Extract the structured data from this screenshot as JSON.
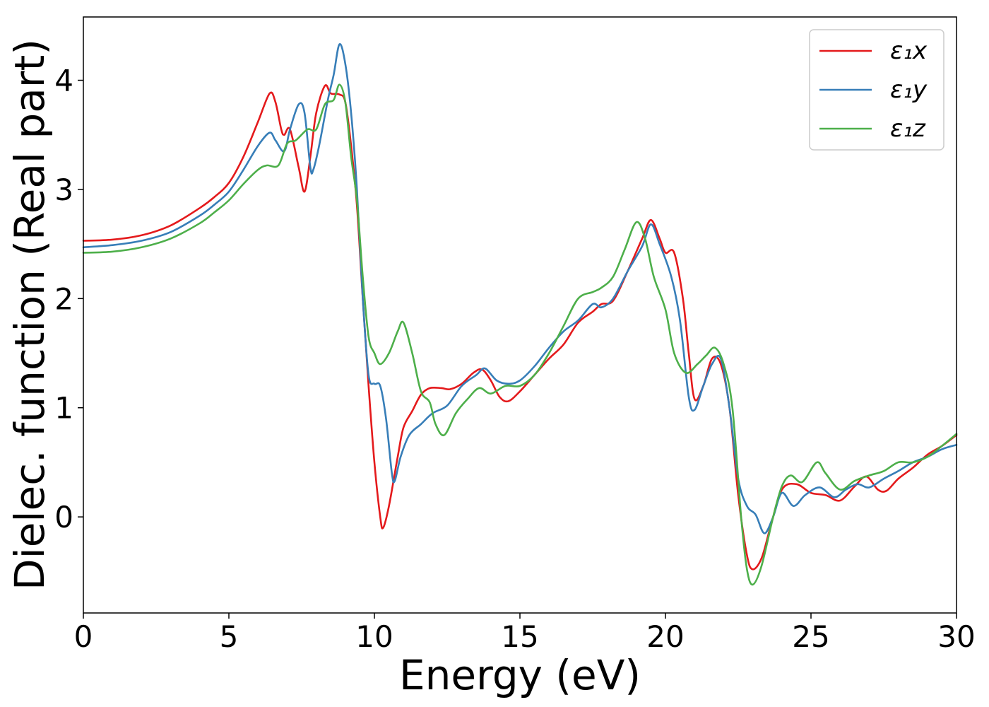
{
  "chart_data": {
    "type": "line",
    "title": "",
    "xlabel": "Energy (eV)",
    "ylabel": "Dielec. function (Real part)",
    "xlim": [
      0,
      30
    ],
    "ylim": [
      -0.88,
      4.58
    ],
    "xticks": [
      0,
      5,
      10,
      15,
      20,
      25,
      30
    ],
    "yticks": [
      0,
      1,
      2,
      3,
      4
    ],
    "grid": false,
    "legend_position": "top-right",
    "series": [
      {
        "name": "ε₁x",
        "color": "#e41a1c",
        "points": [
          [
            0,
            2.53
          ],
          [
            1,
            2.54
          ],
          [
            2,
            2.58
          ],
          [
            3,
            2.67
          ],
          [
            4,
            2.83
          ],
          [
            4.5,
            2.93
          ],
          [
            5,
            3.06
          ],
          [
            5.5,
            3.3
          ],
          [
            6,
            3.62
          ],
          [
            6.4,
            3.88
          ],
          [
            6.6,
            3.8
          ],
          [
            6.8,
            3.55
          ],
          [
            6.9,
            3.5
          ],
          [
            7.1,
            3.55
          ],
          [
            7.4,
            3.2
          ],
          [
            7.6,
            2.98
          ],
          [
            7.8,
            3.3
          ],
          [
            8,
            3.7
          ],
          [
            8.3,
            3.95
          ],
          [
            8.5,
            3.88
          ],
          [
            8.8,
            3.87
          ],
          [
            9,
            3.8
          ],
          [
            9.2,
            3.4
          ],
          [
            9.4,
            2.85
          ],
          [
            9.6,
            2.0
          ],
          [
            9.8,
            1.2
          ],
          [
            10,
            0.5
          ],
          [
            10.2,
            0.0
          ],
          [
            10.3,
            -0.1
          ],
          [
            10.5,
            0.1
          ],
          [
            10.8,
            0.55
          ],
          [
            11,
            0.82
          ],
          [
            11.3,
            0.97
          ],
          [
            11.6,
            1.12
          ],
          [
            11.9,
            1.18
          ],
          [
            12.3,
            1.18
          ],
          [
            12.6,
            1.17
          ],
          [
            13,
            1.22
          ],
          [
            13.4,
            1.32
          ],
          [
            13.7,
            1.35
          ],
          [
            14,
            1.25
          ],
          [
            14.3,
            1.1
          ],
          [
            14.6,
            1.06
          ],
          [
            15,
            1.15
          ],
          [
            15.5,
            1.3
          ],
          [
            16,
            1.45
          ],
          [
            16.5,
            1.58
          ],
          [
            17,
            1.78
          ],
          [
            17.5,
            1.88
          ],
          [
            17.8,
            1.95
          ],
          [
            18.2,
            1.98
          ],
          [
            18.7,
            2.25
          ],
          [
            19.2,
            2.55
          ],
          [
            19.5,
            2.72
          ],
          [
            19.8,
            2.55
          ],
          [
            20,
            2.42
          ],
          [
            20.3,
            2.42
          ],
          [
            20.6,
            2.0
          ],
          [
            20.8,
            1.5
          ],
          [
            21,
            1.08
          ],
          [
            21.3,
            1.2
          ],
          [
            21.6,
            1.45
          ],
          [
            21.9,
            1.4
          ],
          [
            22.2,
            1.0
          ],
          [
            22.5,
            0.2
          ],
          [
            22.8,
            -0.35
          ],
          [
            23,
            -0.48
          ],
          [
            23.3,
            -0.38
          ],
          [
            23.6,
            -0.1
          ],
          [
            24,
            0.25
          ],
          [
            24.5,
            0.3
          ],
          [
            25,
            0.22
          ],
          [
            25.5,
            0.2
          ],
          [
            26,
            0.15
          ],
          [
            26.5,
            0.28
          ],
          [
            26.9,
            0.37
          ],
          [
            27.3,
            0.25
          ],
          [
            27.6,
            0.24
          ],
          [
            28,
            0.35
          ],
          [
            28.5,
            0.45
          ],
          [
            29,
            0.57
          ],
          [
            29.5,
            0.65
          ],
          [
            30,
            0.75
          ]
        ]
      },
      {
        "name": "ε₁y",
        "color": "#377eb8",
        "points": [
          [
            0,
            2.47
          ],
          [
            1,
            2.49
          ],
          [
            2,
            2.53
          ],
          [
            3,
            2.61
          ],
          [
            4,
            2.76
          ],
          [
            4.5,
            2.86
          ],
          [
            5,
            2.98
          ],
          [
            5.5,
            3.18
          ],
          [
            6,
            3.4
          ],
          [
            6.4,
            3.52
          ],
          [
            6.6,
            3.45
          ],
          [
            6.9,
            3.35
          ],
          [
            7.1,
            3.55
          ],
          [
            7.4,
            3.78
          ],
          [
            7.6,
            3.7
          ],
          [
            7.8,
            3.2
          ],
          [
            7.9,
            3.18
          ],
          [
            8.1,
            3.4
          ],
          [
            8.4,
            3.82
          ],
          [
            8.6,
            4.05
          ],
          [
            8.8,
            4.33
          ],
          [
            9,
            4.15
          ],
          [
            9.2,
            3.7
          ],
          [
            9.4,
            3.0
          ],
          [
            9.6,
            2.0
          ],
          [
            9.8,
            1.3
          ],
          [
            10,
            1.22
          ],
          [
            10.2,
            1.2
          ],
          [
            10.4,
            0.9
          ],
          [
            10.6,
            0.4
          ],
          [
            10.7,
            0.33
          ],
          [
            10.9,
            0.55
          ],
          [
            11.2,
            0.75
          ],
          [
            11.6,
            0.85
          ],
          [
            12,
            0.95
          ],
          [
            12.5,
            1.02
          ],
          [
            13,
            1.2
          ],
          [
            13.5,
            1.3
          ],
          [
            13.8,
            1.36
          ],
          [
            14.2,
            1.25
          ],
          [
            14.6,
            1.22
          ],
          [
            15,
            1.25
          ],
          [
            15.5,
            1.38
          ],
          [
            16,
            1.55
          ],
          [
            16.5,
            1.7
          ],
          [
            17,
            1.8
          ],
          [
            17.5,
            1.95
          ],
          [
            17.8,
            1.92
          ],
          [
            18.2,
            2.0
          ],
          [
            18.7,
            2.25
          ],
          [
            19.2,
            2.48
          ],
          [
            19.5,
            2.68
          ],
          [
            19.8,
            2.5
          ],
          [
            20.2,
            2.2
          ],
          [
            20.5,
            1.8
          ],
          [
            20.8,
            1.1
          ],
          [
            21,
            0.98
          ],
          [
            21.3,
            1.2
          ],
          [
            21.6,
            1.4
          ],
          [
            21.9,
            1.45
          ],
          [
            22.2,
            1.0
          ],
          [
            22.5,
            0.35
          ],
          [
            22.8,
            0.1
          ],
          [
            23.1,
            0.02
          ],
          [
            23.4,
            -0.15
          ],
          [
            23.7,
            0.0
          ],
          [
            24,
            0.22
          ],
          [
            24.4,
            0.1
          ],
          [
            24.8,
            0.2
          ],
          [
            25.3,
            0.27
          ],
          [
            25.8,
            0.18
          ],
          [
            26.2,
            0.25
          ],
          [
            26.6,
            0.3
          ],
          [
            27,
            0.27
          ],
          [
            27.5,
            0.35
          ],
          [
            28,
            0.42
          ],
          [
            28.5,
            0.5
          ],
          [
            29,
            0.55
          ],
          [
            29.5,
            0.62
          ],
          [
            30,
            0.66
          ]
        ]
      },
      {
        "name": "ε₁z",
        "color": "#4daf4a",
        "points": [
          [
            0,
            2.42
          ],
          [
            1,
            2.43
          ],
          [
            2,
            2.47
          ],
          [
            3,
            2.55
          ],
          [
            4,
            2.69
          ],
          [
            4.5,
            2.79
          ],
          [
            5,
            2.9
          ],
          [
            5.5,
            3.05
          ],
          [
            6,
            3.18
          ],
          [
            6.3,
            3.22
          ],
          [
            6.7,
            3.22
          ],
          [
            7,
            3.42
          ],
          [
            7.3,
            3.45
          ],
          [
            7.7,
            3.55
          ],
          [
            8,
            3.55
          ],
          [
            8.3,
            3.78
          ],
          [
            8.6,
            3.82
          ],
          [
            8.8,
            3.96
          ],
          [
            9,
            3.8
          ],
          [
            9.2,
            3.3
          ],
          [
            9.4,
            2.9
          ],
          [
            9.6,
            2.2
          ],
          [
            9.8,
            1.65
          ],
          [
            10,
            1.5
          ],
          [
            10.2,
            1.4
          ],
          [
            10.5,
            1.5
          ],
          [
            10.8,
            1.7
          ],
          [
            11,
            1.78
          ],
          [
            11.3,
            1.5
          ],
          [
            11.6,
            1.15
          ],
          [
            11.9,
            1.05
          ],
          [
            12.1,
            0.85
          ],
          [
            12.4,
            0.75
          ],
          [
            12.8,
            0.95
          ],
          [
            13.2,
            1.08
          ],
          [
            13.6,
            1.18
          ],
          [
            14,
            1.13
          ],
          [
            14.5,
            1.2
          ],
          [
            15,
            1.2
          ],
          [
            15.5,
            1.3
          ],
          [
            16,
            1.5
          ],
          [
            16.5,
            1.75
          ],
          [
            17,
            2.0
          ],
          [
            17.5,
            2.06
          ],
          [
            17.8,
            2.1
          ],
          [
            18.2,
            2.2
          ],
          [
            18.6,
            2.45
          ],
          [
            19,
            2.7
          ],
          [
            19.3,
            2.55
          ],
          [
            19.6,
            2.2
          ],
          [
            20,
            1.9
          ],
          [
            20.3,
            1.5
          ],
          [
            20.7,
            1.32
          ],
          [
            21.1,
            1.4
          ],
          [
            21.4,
            1.48
          ],
          [
            21.7,
            1.55
          ],
          [
            22,
            1.4
          ],
          [
            22.3,
            1.0
          ],
          [
            22.6,
            0.0
          ],
          [
            22.8,
            -0.48
          ],
          [
            23,
            -0.62
          ],
          [
            23.3,
            -0.45
          ],
          [
            23.7,
            0.0
          ],
          [
            24,
            0.28
          ],
          [
            24.3,
            0.38
          ],
          [
            24.7,
            0.32
          ],
          [
            25.2,
            0.5
          ],
          [
            25.5,
            0.4
          ],
          [
            26,
            0.25
          ],
          [
            26.5,
            0.33
          ],
          [
            27,
            0.38
          ],
          [
            27.5,
            0.42
          ],
          [
            28,
            0.5
          ],
          [
            28.5,
            0.5
          ],
          [
            29,
            0.55
          ],
          [
            29.5,
            0.65
          ],
          [
            30,
            0.76
          ]
        ]
      }
    ]
  }
}
